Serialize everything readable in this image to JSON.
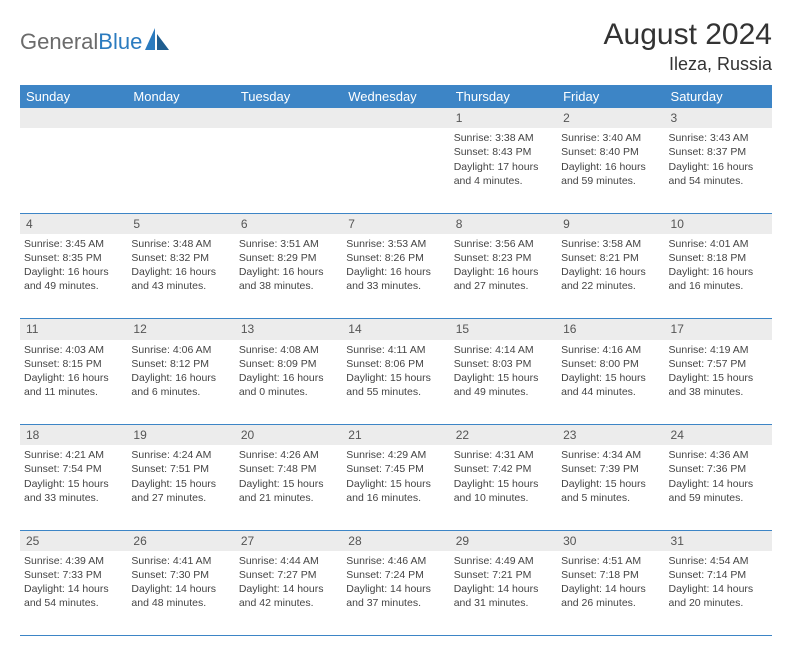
{
  "branding": {
    "logo_text_1": "General",
    "logo_text_2": "Blue",
    "logo_color_gray": "#6b6b6b",
    "logo_color_blue": "#2b7bbf"
  },
  "header": {
    "month_title": "August 2024",
    "location": "Ileza, Russia"
  },
  "colors": {
    "header_bg": "#3d85c6",
    "header_fg": "#ffffff",
    "daynum_bg": "#ececec",
    "border": "#3d85c6",
    "text": "#444444"
  },
  "weekdays": [
    "Sunday",
    "Monday",
    "Tuesday",
    "Wednesday",
    "Thursday",
    "Friday",
    "Saturday"
  ],
  "weeks": [
    {
      "nums": [
        "",
        "",
        "",
        "",
        "1",
        "2",
        "3"
      ],
      "cells": [
        null,
        null,
        null,
        null,
        {
          "sunrise": "3:38 AM",
          "sunset": "8:43 PM",
          "daylight": "17 hours and 4 minutes."
        },
        {
          "sunrise": "3:40 AM",
          "sunset": "8:40 PM",
          "daylight": "16 hours and 59 minutes."
        },
        {
          "sunrise": "3:43 AM",
          "sunset": "8:37 PM",
          "daylight": "16 hours and 54 minutes."
        }
      ]
    },
    {
      "nums": [
        "4",
        "5",
        "6",
        "7",
        "8",
        "9",
        "10"
      ],
      "cells": [
        {
          "sunrise": "3:45 AM",
          "sunset": "8:35 PM",
          "daylight": "16 hours and 49 minutes."
        },
        {
          "sunrise": "3:48 AM",
          "sunset": "8:32 PM",
          "daylight": "16 hours and 43 minutes."
        },
        {
          "sunrise": "3:51 AM",
          "sunset": "8:29 PM",
          "daylight": "16 hours and 38 minutes."
        },
        {
          "sunrise": "3:53 AM",
          "sunset": "8:26 PM",
          "daylight": "16 hours and 33 minutes."
        },
        {
          "sunrise": "3:56 AM",
          "sunset": "8:23 PM",
          "daylight": "16 hours and 27 minutes."
        },
        {
          "sunrise": "3:58 AM",
          "sunset": "8:21 PM",
          "daylight": "16 hours and 22 minutes."
        },
        {
          "sunrise": "4:01 AM",
          "sunset": "8:18 PM",
          "daylight": "16 hours and 16 minutes."
        }
      ]
    },
    {
      "nums": [
        "11",
        "12",
        "13",
        "14",
        "15",
        "16",
        "17"
      ],
      "cells": [
        {
          "sunrise": "4:03 AM",
          "sunset": "8:15 PM",
          "daylight": "16 hours and 11 minutes."
        },
        {
          "sunrise": "4:06 AM",
          "sunset": "8:12 PM",
          "daylight": "16 hours and 6 minutes."
        },
        {
          "sunrise": "4:08 AM",
          "sunset": "8:09 PM",
          "daylight": "16 hours and 0 minutes."
        },
        {
          "sunrise": "4:11 AM",
          "sunset": "8:06 PM",
          "daylight": "15 hours and 55 minutes."
        },
        {
          "sunrise": "4:14 AM",
          "sunset": "8:03 PM",
          "daylight": "15 hours and 49 minutes."
        },
        {
          "sunrise": "4:16 AM",
          "sunset": "8:00 PM",
          "daylight": "15 hours and 44 minutes."
        },
        {
          "sunrise": "4:19 AM",
          "sunset": "7:57 PM",
          "daylight": "15 hours and 38 minutes."
        }
      ]
    },
    {
      "nums": [
        "18",
        "19",
        "20",
        "21",
        "22",
        "23",
        "24"
      ],
      "cells": [
        {
          "sunrise": "4:21 AM",
          "sunset": "7:54 PM",
          "daylight": "15 hours and 33 minutes."
        },
        {
          "sunrise": "4:24 AM",
          "sunset": "7:51 PM",
          "daylight": "15 hours and 27 minutes."
        },
        {
          "sunrise": "4:26 AM",
          "sunset": "7:48 PM",
          "daylight": "15 hours and 21 minutes."
        },
        {
          "sunrise": "4:29 AM",
          "sunset": "7:45 PM",
          "daylight": "15 hours and 16 minutes."
        },
        {
          "sunrise": "4:31 AM",
          "sunset": "7:42 PM",
          "daylight": "15 hours and 10 minutes."
        },
        {
          "sunrise": "4:34 AM",
          "sunset": "7:39 PM",
          "daylight": "15 hours and 5 minutes."
        },
        {
          "sunrise": "4:36 AM",
          "sunset": "7:36 PM",
          "daylight": "14 hours and 59 minutes."
        }
      ]
    },
    {
      "nums": [
        "25",
        "26",
        "27",
        "28",
        "29",
        "30",
        "31"
      ],
      "cells": [
        {
          "sunrise": "4:39 AM",
          "sunset": "7:33 PM",
          "daylight": "14 hours and 54 minutes."
        },
        {
          "sunrise": "4:41 AM",
          "sunset": "7:30 PM",
          "daylight": "14 hours and 48 minutes."
        },
        {
          "sunrise": "4:44 AM",
          "sunset": "7:27 PM",
          "daylight": "14 hours and 42 minutes."
        },
        {
          "sunrise": "4:46 AM",
          "sunset": "7:24 PM",
          "daylight": "14 hours and 37 minutes."
        },
        {
          "sunrise": "4:49 AM",
          "sunset": "7:21 PM",
          "daylight": "14 hours and 31 minutes."
        },
        {
          "sunrise": "4:51 AM",
          "sunset": "7:18 PM",
          "daylight": "14 hours and 26 minutes."
        },
        {
          "sunrise": "4:54 AM",
          "sunset": "7:14 PM",
          "daylight": "14 hours and 20 minutes."
        }
      ]
    }
  ],
  "labels": {
    "sunrise": "Sunrise:",
    "sunset": "Sunset:",
    "daylight": "Daylight:"
  }
}
